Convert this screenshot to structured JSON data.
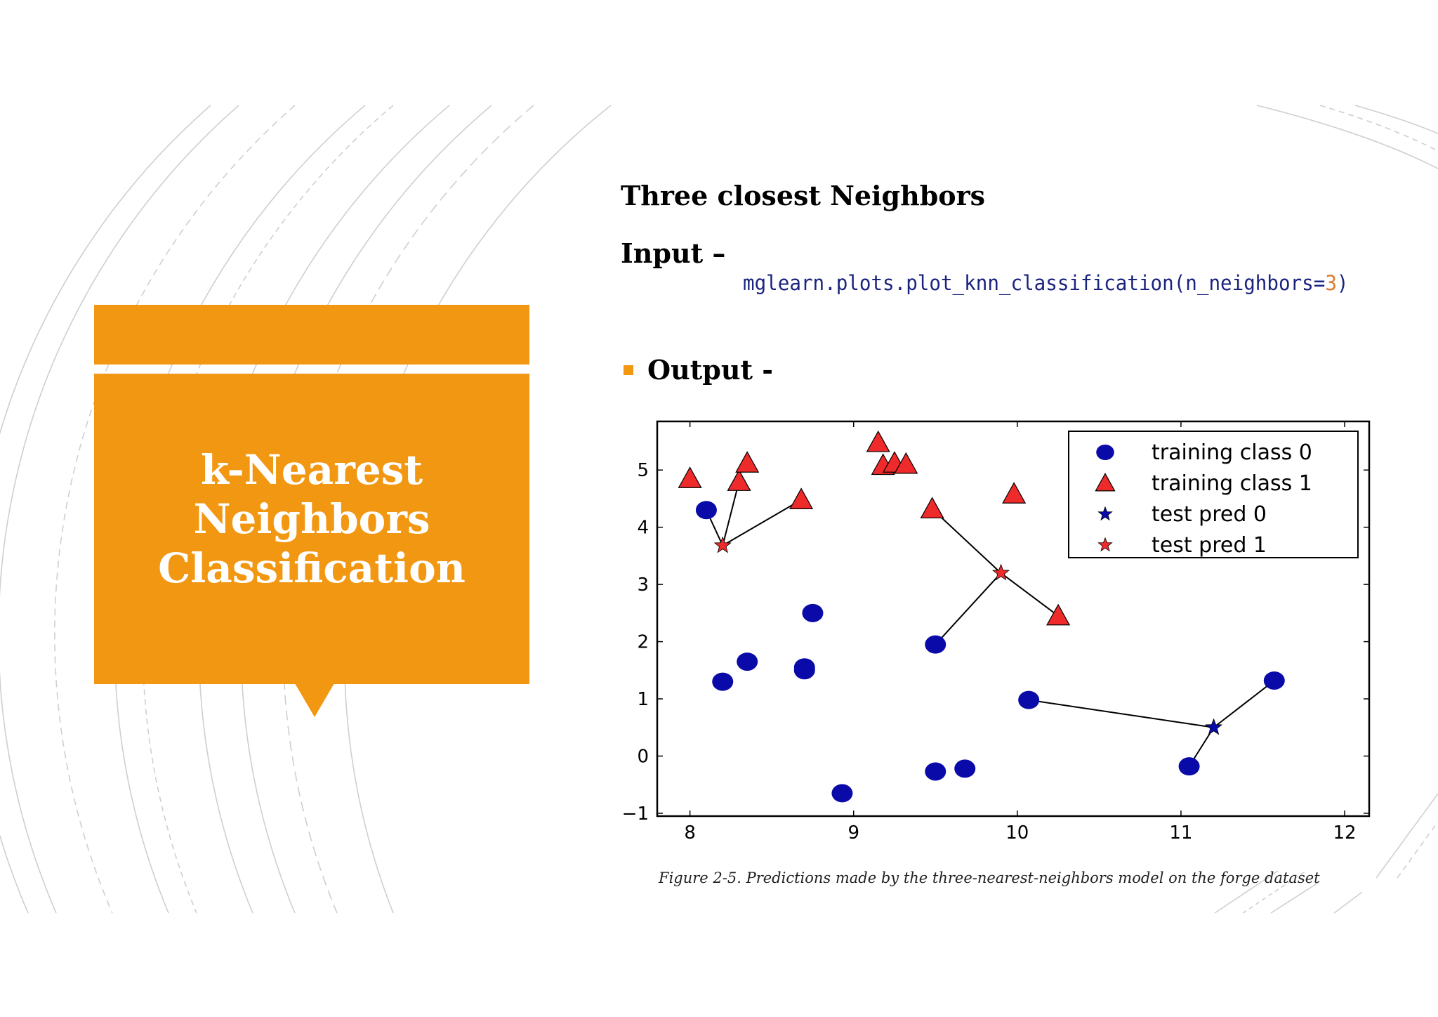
{
  "slide": {
    "title_lines": [
      "k-Nearest",
      "Neighbors",
      "Classification"
    ],
    "heading": "Three closest Neighbors",
    "input_label": "Input –",
    "code_prefix": "mglearn.plots.plot_knn_classification(n_neighbors=",
    "code_arg": "3",
    "code_suffix": ")",
    "output_label": "Output -",
    "caption": "Figure 2-5. Predictions made by the three-nearest-neighbors model on the forge dataset"
  },
  "colors": {
    "accent": "#f29711",
    "class0": "#0a0aa8",
    "class1": "#ee2a2a",
    "code": "#1a237e"
  },
  "chart_data": {
    "type": "scatter",
    "xlim": [
      7.8,
      12.15
    ],
    "ylim": [
      -1.05,
      5.85
    ],
    "xticks": [
      8,
      9,
      10,
      11,
      12
    ],
    "yticks": [
      -1,
      0,
      1,
      2,
      3,
      4,
      5
    ],
    "xtick_labels": [
      "8",
      "9",
      "10",
      "11",
      "12"
    ],
    "ytick_labels": [
      "−1",
      "0",
      "1",
      "2",
      "3",
      "4",
      "5"
    ],
    "legend_position": "top-right",
    "series": [
      {
        "name": "training class 0",
        "marker": "circle",
        "color": "#0a0aa8",
        "points": [
          [
            8.1,
            4.3
          ],
          [
            8.35,
            1.65
          ],
          [
            8.2,
            1.3
          ],
          [
            8.7,
            1.55
          ],
          [
            8.7,
            1.5
          ],
          [
            8.75,
            2.5
          ],
          [
            8.93,
            -0.65
          ],
          [
            9.5,
            1.95
          ],
          [
            9.5,
            -0.27
          ],
          [
            9.68,
            -0.22
          ],
          [
            10.07,
            0.98
          ],
          [
            11.05,
            -0.18
          ],
          [
            11.57,
            1.32
          ]
        ]
      },
      {
        "name": "training class 1",
        "marker": "triangle",
        "color": "#ee2a2a",
        "points": [
          [
            8.0,
            4.85
          ],
          [
            8.3,
            4.8
          ],
          [
            8.35,
            5.12
          ],
          [
            8.68,
            4.48
          ],
          [
            9.15,
            5.48
          ],
          [
            9.18,
            5.08
          ],
          [
            9.25,
            5.12
          ],
          [
            9.32,
            5.1
          ],
          [
            9.48,
            4.32
          ],
          [
            9.98,
            4.58
          ],
          [
            10.25,
            2.45
          ]
        ]
      },
      {
        "name": "test pred 0",
        "marker": "star",
        "color": "#0a0aa8",
        "points": [
          [
            11.2,
            0.5
          ]
        ]
      },
      {
        "name": "test pred 1",
        "marker": "star",
        "color": "#ee2a2a",
        "points": [
          [
            8.2,
            3.68
          ],
          [
            9.9,
            3.2
          ]
        ]
      }
    ],
    "neighbor_lines": [
      [
        [
          8.2,
          3.68
        ],
        [
          8.1,
          4.3
        ]
      ],
      [
        [
          8.2,
          3.68
        ],
        [
          8.3,
          4.8
        ]
      ],
      [
        [
          8.2,
          3.68
        ],
        [
          8.68,
          4.48
        ]
      ],
      [
        [
          9.9,
          3.2
        ],
        [
          9.48,
          4.32
        ]
      ],
      [
        [
          9.9,
          3.2
        ],
        [
          10.25,
          2.45
        ]
      ],
      [
        [
          9.9,
          3.2
        ],
        [
          9.5,
          1.95
        ]
      ],
      [
        [
          11.2,
          0.5
        ],
        [
          10.07,
          0.98
        ]
      ],
      [
        [
          11.2,
          0.5
        ],
        [
          11.05,
          -0.18
        ]
      ],
      [
        [
          11.2,
          0.5
        ],
        [
          11.57,
          1.32
        ]
      ]
    ]
  }
}
